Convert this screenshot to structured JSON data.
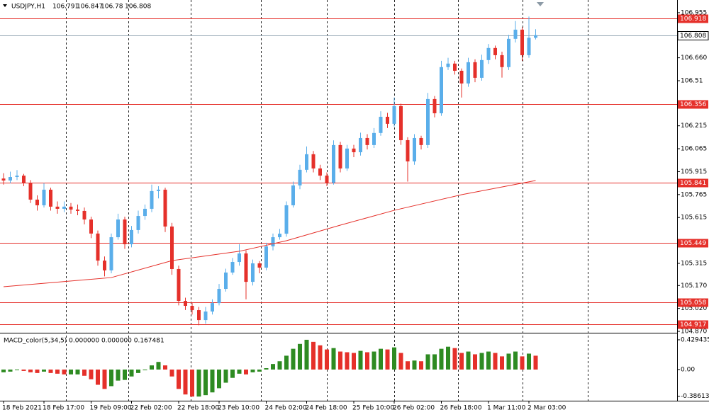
{
  "chart_data": {
    "type": "candlestick",
    "symbol": "USDJPY,H1",
    "categories": [
      "18 Feb 2021",
      null,
      null,
      null,
      null,
      null,
      "18 Feb 17:00",
      null,
      null,
      null,
      null,
      null,
      null,
      "19 Feb 09:00",
      null,
      null,
      null,
      null,
      null,
      "22 Feb 02:00",
      null,
      null,
      null,
      null,
      null,
      null,
      "22 Feb 18:00",
      null,
      null,
      null,
      null,
      null,
      "23 Feb 10:00",
      null,
      null,
      null,
      null,
      null,
      null,
      "24 Feb 02:00",
      null,
      null,
      null,
      null,
      null,
      "24 Feb 18:00",
      null,
      null,
      null,
      null,
      null,
      null,
      "25 Feb 10:00",
      null,
      null,
      null,
      null,
      null,
      "26 Feb 02:00",
      null,
      null,
      null,
      null,
      null,
      null,
      "26 Feb 18:00",
      null,
      null,
      null,
      null,
      null,
      null,
      "1 Mar 11:00",
      null,
      null,
      null,
      null,
      null,
      "2 Mar 03:00",
      null
    ],
    "open": [
      105.87,
      105.857,
      105.88,
      105.889,
      105.843,
      105.732,
      105.695,
      105.797,
      105.686,
      105.672,
      105.686,
      105.667,
      105.658,
      105.602,
      105.51,
      105.333,
      105.269,
      105.486,
      105.602,
      105.44,
      105.533,
      105.625,
      105.672,
      105.788,
      105.797,
      105.556,
      105.278,
      105.069,
      105.037,
      105.009,
      104.944,
      105.0,
      105.055,
      105.148,
      105.255,
      105.324,
      105.38,
      105.194,
      105.315,
      105.287,
      105.426,
      105.486,
      105.509,
      105.695,
      105.825,
      105.927,
      106.029,
      105.936,
      105.889,
      105.843,
      106.089,
      105.936,
      106.066,
      106.042,
      106.135,
      106.089,
      106.168,
      106.274,
      106.228,
      106.344,
      106.121,
      105.982,
      106.135,
      106.089,
      106.39,
      106.297,
      106.599,
      106.622,
      106.575,
      106.492,
      106.631,
      106.529,
      106.645,
      106.724,
      106.677,
      106.599,
      106.784,
      106.844,
      106.677,
      106.791
    ],
    "high": [
      105.905,
      105.915,
      105.925,
      105.9,
      105.86,
      105.76,
      105.84,
      105.81,
      105.72,
      105.72,
      105.71,
      105.7,
      105.68,
      105.62,
      105.53,
      105.36,
      105.51,
      105.64,
      105.62,
      105.56,
      105.66,
      105.7,
      105.83,
      105.82,
      105.81,
      105.58,
      105.3,
      105.09,
      105.06,
      105.03,
      105.03,
      105.08,
      105.18,
      105.28,
      105.35,
      105.44,
      105.4,
      105.34,
      105.33,
      105.45,
      105.51,
      105.54,
      105.72,
      105.85,
      105.96,
      106.08,
      106.05,
      105.96,
      105.91,
      106.12,
      106.11,
      106.09,
      106.09,
      106.17,
      106.16,
      106.2,
      106.31,
      106.3,
      106.4,
      106.36,
      106.14,
      106.16,
      106.15,
      106.43,
      106.41,
      106.64,
      106.66,
      106.64,
      106.59,
      106.66,
      106.65,
      106.68,
      106.75,
      106.74,
      106.7,
      106.81,
      106.9,
      106.86,
      106.93,
      106.847
    ],
    "low": [
      105.83,
      105.84,
      105.86,
      105.82,
      105.71,
      105.66,
      105.68,
      105.66,
      105.64,
      105.65,
      105.64,
      105.63,
      105.57,
      105.48,
      105.3,
      105.23,
      105.25,
      105.47,
      105.41,
      105.42,
      105.51,
      105.6,
      105.65,
      105.74,
      105.52,
      105.24,
      105.04,
      105.01,
      104.98,
      104.91,
      104.92,
      104.98,
      105.04,
      105.13,
      105.24,
      105.3,
      105.08,
      105.17,
      105.25,
      105.27,
      105.4,
      105.47,
      105.49,
      105.68,
      105.8,
      105.91,
      105.91,
      105.86,
      105.82,
      105.83,
      105.91,
      105.92,
      106.01,
      106.02,
      106.06,
      106.07,
      106.15,
      106.2,
      106.21,
      106.09,
      105.85,
      105.96,
      106.06,
      106.07,
      106.27,
      106.28,
      106.58,
      106.55,
      106.4,
      106.47,
      106.5,
      106.51,
      106.62,
      106.65,
      106.53,
      106.58,
      106.76,
      106.64,
      106.66,
      106.78
    ],
    "close": [
      105.857,
      105.88,
      105.889,
      105.843,
      105.732,
      105.695,
      105.797,
      105.686,
      105.672,
      105.686,
      105.667,
      105.658,
      105.602,
      105.51,
      105.333,
      105.269,
      105.486,
      105.602,
      105.44,
      105.533,
      105.625,
      105.672,
      105.788,
      105.797,
      105.556,
      105.278,
      105.069,
      105.037,
      105.009,
      104.944,
      105.0,
      105.055,
      105.148,
      105.255,
      105.324,
      105.38,
      105.194,
      105.315,
      105.287,
      105.426,
      105.486,
      105.509,
      105.695,
      105.825,
      105.927,
      106.029,
      105.936,
      105.889,
      105.843,
      106.089,
      105.936,
      106.066,
      106.042,
      106.135,
      106.089,
      106.168,
      106.274,
      106.228,
      106.344,
      106.121,
      105.982,
      106.135,
      106.089,
      106.39,
      106.297,
      106.599,
      106.622,
      106.575,
      106.492,
      106.631,
      106.529,
      106.645,
      106.724,
      106.677,
      106.599,
      106.784,
      106.844,
      106.677,
      106.791,
      106.808
    ],
    "up_color": "#5aaeea",
    "down_color": "#e5302a",
    "ylim": [
      104.861,
      107.038
    ],
    "yticks": [
      106.955,
      {
        "value": 106.66,
        "label": "106.660"
      },
      106.51,
      106.215,
      106.065,
      105.915,
      105.765,
      105.615,
      105.315,
      {
        "value": 105.17,
        "label": "105.170"
      },
      {
        "value": 105.02,
        "label": "105.020"
      },
      {
        "value": 104.87,
        "label": "104.870"
      }
    ],
    "levels": {
      "values": [
        106.918,
        106.356,
        105.841,
        105.449,
        105.058,
        104.917
      ],
      "color": "#e5302a"
    },
    "current_color": "#9aabb8",
    "ma": {
      "x": [
        0,
        16,
        25,
        35,
        42,
        50,
        58,
        68,
        79
      ],
      "values": [
        105.162,
        105.222,
        105.333,
        105.394,
        105.463,
        105.565,
        105.662,
        105.764,
        105.857
      ],
      "color": "#e5302a"
    },
    "macd": {
      "title": "MACD_color(5,34,5) 0.000000 0.000000 0.167481",
      "values": [
        -0.04,
        -0.03,
        -0.01,
        -0.02,
        -0.04,
        -0.05,
        -0.03,
        -0.05,
        -0.06,
        -0.07,
        -0.07,
        -0.07,
        -0.09,
        -0.14,
        -0.22,
        -0.28,
        -0.24,
        -0.16,
        -0.15,
        -0.1,
        -0.05,
        0.0,
        0.06,
        0.11,
        0.06,
        -0.1,
        -0.28,
        -0.36,
        -0.39,
        -0.39,
        -0.37,
        -0.33,
        -0.27,
        -0.19,
        -0.12,
        -0.06,
        -0.07,
        -0.04,
        -0.03,
        0.02,
        0.08,
        0.12,
        0.2,
        0.3,
        0.37,
        0.43,
        0.4,
        0.35,
        0.29,
        0.31,
        0.26,
        0.25,
        0.24,
        0.27,
        0.25,
        0.26,
        0.3,
        0.29,
        0.32,
        0.24,
        0.12,
        0.13,
        0.12,
        0.22,
        0.22,
        0.3,
        0.33,
        0.31,
        0.24,
        0.26,
        0.22,
        0.24,
        0.26,
        0.24,
        0.19,
        0.23,
        0.26,
        0.19,
        0.23,
        0.2
      ],
      "up_color": "#2e8b22",
      "down_color": "#e5302a",
      "ylim": [
        -0.44,
        0.511
      ],
      "yticks": [
        0.429435,
        {
          "value": 0,
          "label": "0.00"
        },
        -0.386137
      ]
    }
  }
}
